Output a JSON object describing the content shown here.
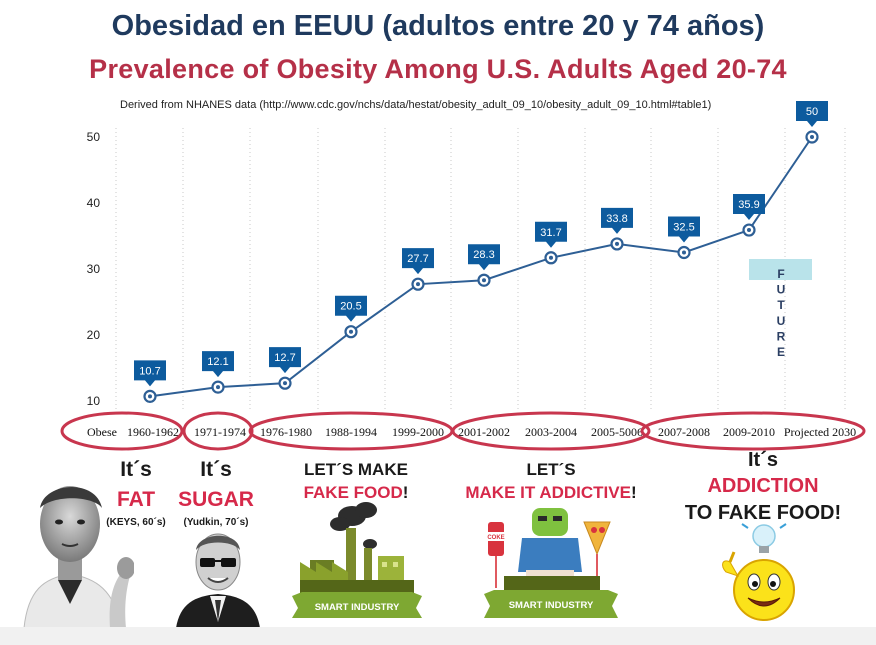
{
  "titles": {
    "spanish": "Obesidad en EEUU (adultos entre 20 y 74 años)",
    "english": "Prevalence of Obesity Among U.S. Adults Aged 20-74",
    "source": "Derived from NHANES data (http://www.cdc.gov/nchs/data/hestat/obesity_adult_09_10/obesity_adult_09_10.html#table1)"
  },
  "chart_data": {
    "type": "line",
    "categories": [
      "1960-1962",
      "1971-1974",
      "1976-1980",
      "1988-1994",
      "1999-2000",
      "2001-2002",
      "2003-2004",
      "2005-5006",
      "2007-2008",
      "2009-2010",
      "Projected 2030"
    ],
    "category_axis_label": "Obese",
    "series": [
      {
        "values": [
          10.7,
          12.1,
          12.7,
          20.5,
          27.7,
          28.3,
          31.7,
          33.8,
          32.5,
          35.9,
          50
        ]
      }
    ],
    "yticks": [
      10,
      20,
      30,
      40,
      50
    ],
    "ylim": [
      8,
      52
    ],
    "grid": "vertical dotted",
    "annotation": {
      "text": "FUTURE",
      "letters": [
        "F",
        "U",
        "T",
        "U",
        "R",
        "E"
      ]
    },
    "colors": {
      "line": "#2e5f95",
      "label_bg": "#0d5b9e",
      "label_text": "#ffffff",
      "ellipse": "#c8364e",
      "future_band": "#b9e3ea"
    }
  },
  "eras": [
    {
      "line1": "It´s",
      "line2": "FAT",
      "sub": "(KEYS, 60´s)"
    },
    {
      "line1": "It´s",
      "line2": "SUGAR",
      "sub": "(Yudkin, 70´s)"
    },
    {
      "line1": "LET´S MAKE",
      "line2_red": "FAKE FOOD",
      "line2_dark": "!",
      "badge": "SMART INDUSTRY"
    },
    {
      "line1": "LET´S",
      "line2_red": "MAKE IT ADDICTIVE",
      "line2_dark": "!",
      "badge": "SMART INDUSTRY",
      "can_label": "COKE"
    },
    {
      "line1": "It´s",
      "line2": "ADDICTION",
      "line3": "TO FAKE FOOD!"
    }
  ]
}
